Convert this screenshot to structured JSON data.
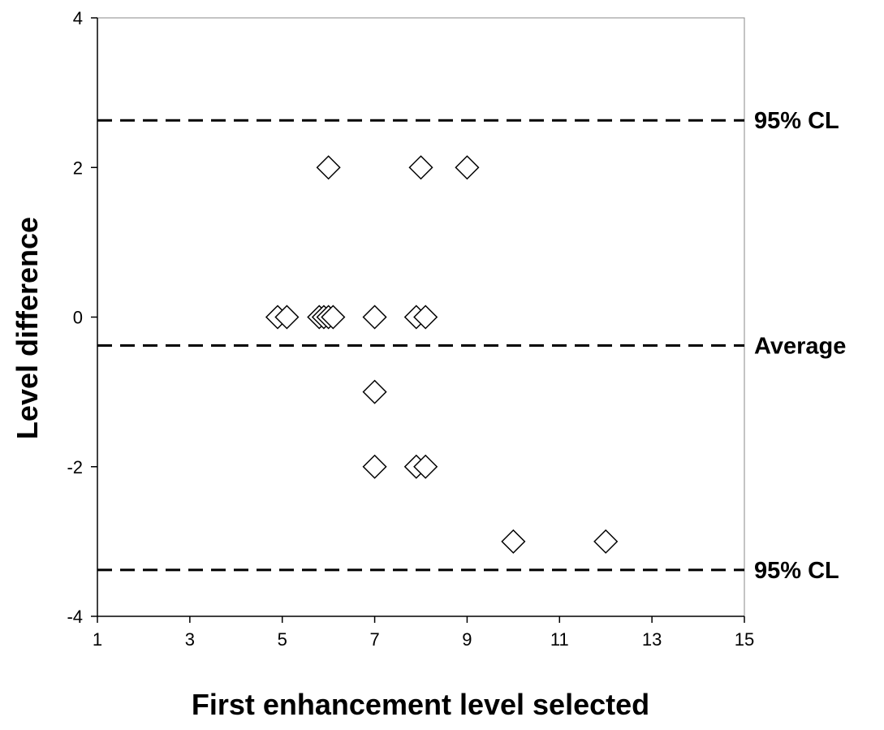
{
  "chart_data": {
    "type": "scatter",
    "title": "",
    "xlabel": "First enhancement level selected",
    "ylabel": "Level difference",
    "xlim": [
      1,
      15
    ],
    "ylim": [
      -4,
      4
    ],
    "x_ticks": [
      1,
      3,
      5,
      7,
      9,
      11,
      13,
      15
    ],
    "y_ticks": [
      -4,
      -2,
      0,
      2,
      4
    ],
    "grid": false,
    "marker": "diamond-open",
    "points": [
      {
        "x": 6,
        "y": 2
      },
      {
        "x": 8,
        "y": 2
      },
      {
        "x": 9,
        "y": 2
      },
      {
        "x": 4.9,
        "y": 0
      },
      {
        "x": 5.1,
        "y": 0
      },
      {
        "x": 5.8,
        "y": 0
      },
      {
        "x": 5.9,
        "y": 0
      },
      {
        "x": 6.0,
        "y": 0
      },
      {
        "x": 6.1,
        "y": 0
      },
      {
        "x": 7,
        "y": 0
      },
      {
        "x": 7.9,
        "y": 0
      },
      {
        "x": 8.1,
        "y": 0
      },
      {
        "x": 7,
        "y": -1
      },
      {
        "x": 7,
        "y": -2
      },
      {
        "x": 7.9,
        "y": -2
      },
      {
        "x": 8.1,
        "y": -2
      },
      {
        "x": 10,
        "y": -3
      },
      {
        "x": 12,
        "y": -3
      }
    ],
    "reference_lines": [
      {
        "y": 2.63,
        "label": "95% CL",
        "style": "dashed"
      },
      {
        "y": -0.38,
        "label": "Average",
        "style": "dashed"
      },
      {
        "y": -3.38,
        "label": "95% CL",
        "style": "dashed"
      }
    ]
  }
}
